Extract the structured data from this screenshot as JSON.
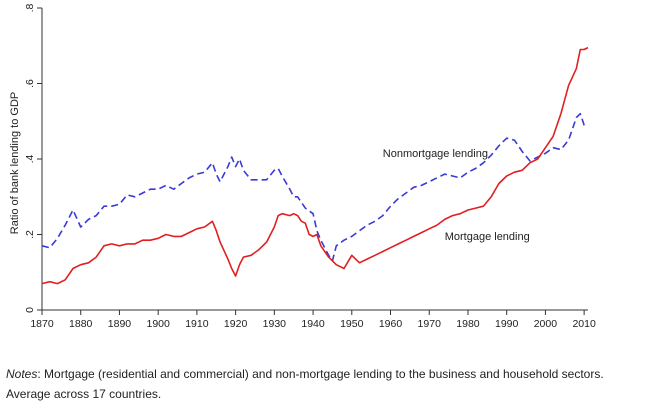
{
  "chart_data": {
    "type": "line",
    "xlabel": "",
    "ylabel": "Ratio of bank lending to GDP",
    "xlim": [
      1870,
      2011
    ],
    "ylim": [
      0,
      0.8
    ],
    "xticks": [
      1870,
      1880,
      1890,
      1900,
      1910,
      1920,
      1930,
      1940,
      1950,
      1960,
      1970,
      1980,
      1990,
      2000,
      2010
    ],
    "yticks": [
      0,
      0.2,
      0.4,
      0.6,
      0.8
    ],
    "ytick_labels": [
      "0",
      ".2",
      ".4",
      ".6",
      ".8"
    ],
    "grid": false,
    "series": [
      {
        "name": "Nonmortgage lending",
        "color": "#3a3ad6",
        "style": "dashed",
        "points": [
          [
            1870,
            0.17
          ],
          [
            1872,
            0.165
          ],
          [
            1874,
            0.19
          ],
          [
            1876,
            0.225
          ],
          [
            1878,
            0.265
          ],
          [
            1880,
            0.22
          ],
          [
            1882,
            0.24
          ],
          [
            1884,
            0.25
          ],
          [
            1886,
            0.275
          ],
          [
            1888,
            0.275
          ],
          [
            1890,
            0.28
          ],
          [
            1892,
            0.305
          ],
          [
            1894,
            0.3
          ],
          [
            1896,
            0.31
          ],
          [
            1898,
            0.32
          ],
          [
            1900,
            0.32
          ],
          [
            1902,
            0.33
          ],
          [
            1904,
            0.32
          ],
          [
            1906,
            0.335
          ],
          [
            1908,
            0.35
          ],
          [
            1910,
            0.36
          ],
          [
            1912,
            0.365
          ],
          [
            1914,
            0.39
          ],
          [
            1915,
            0.36
          ],
          [
            1916,
            0.34
          ],
          [
            1918,
            0.38
          ],
          [
            1919,
            0.405
          ],
          [
            1920,
            0.38
          ],
          [
            1921,
            0.4
          ],
          [
            1922,
            0.37
          ],
          [
            1924,
            0.345
          ],
          [
            1926,
            0.345
          ],
          [
            1928,
            0.345
          ],
          [
            1930,
            0.37
          ],
          [
            1931,
            0.375
          ],
          [
            1932,
            0.355
          ],
          [
            1934,
            0.32
          ],
          [
            1935,
            0.3
          ],
          [
            1936,
            0.3
          ],
          [
            1938,
            0.27
          ],
          [
            1940,
            0.255
          ],
          [
            1941,
            0.21
          ],
          [
            1942,
            0.185
          ],
          [
            1944,
            0.145
          ],
          [
            1945,
            0.13
          ],
          [
            1946,
            0.17
          ],
          [
            1948,
            0.185
          ],
          [
            1950,
            0.195
          ],
          [
            1952,
            0.21
          ],
          [
            1954,
            0.225
          ],
          [
            1956,
            0.235
          ],
          [
            1958,
            0.25
          ],
          [
            1960,
            0.275
          ],
          [
            1962,
            0.295
          ],
          [
            1964,
            0.31
          ],
          [
            1966,
            0.325
          ],
          [
            1968,
            0.33
          ],
          [
            1970,
            0.34
          ],
          [
            1972,
            0.35
          ],
          [
            1974,
            0.36
          ],
          [
            1976,
            0.355
          ],
          [
            1978,
            0.35
          ],
          [
            1980,
            0.365
          ],
          [
            1982,
            0.375
          ],
          [
            1984,
            0.39
          ],
          [
            1986,
            0.41
          ],
          [
            1988,
            0.435
          ],
          [
            1990,
            0.455
          ],
          [
            1992,
            0.45
          ],
          [
            1994,
            0.42
          ],
          [
            1996,
            0.395
          ],
          [
            1998,
            0.405
          ],
          [
            2000,
            0.415
          ],
          [
            2002,
            0.43
          ],
          [
            2004,
            0.425
          ],
          [
            2006,
            0.45
          ],
          [
            2008,
            0.51
          ],
          [
            2009,
            0.52
          ],
          [
            2010,
            0.49
          ],
          [
            2011,
            0.485
          ]
        ]
      },
      {
        "name": "Mortgage lending",
        "color": "#e02020",
        "style": "solid",
        "points": [
          [
            1870,
            0.07
          ],
          [
            1872,
            0.075
          ],
          [
            1874,
            0.07
          ],
          [
            1876,
            0.08
          ],
          [
            1878,
            0.11
          ],
          [
            1880,
            0.12
          ],
          [
            1882,
            0.125
          ],
          [
            1884,
            0.14
          ],
          [
            1886,
            0.17
          ],
          [
            1888,
            0.175
          ],
          [
            1890,
            0.17
          ],
          [
            1892,
            0.175
          ],
          [
            1894,
            0.175
          ],
          [
            1896,
            0.185
          ],
          [
            1898,
            0.185
          ],
          [
            1900,
            0.19
          ],
          [
            1902,
            0.2
          ],
          [
            1904,
            0.195
          ],
          [
            1906,
            0.195
          ],
          [
            1908,
            0.205
          ],
          [
            1910,
            0.215
          ],
          [
            1912,
            0.22
          ],
          [
            1914,
            0.235
          ],
          [
            1915,
            0.21
          ],
          [
            1916,
            0.18
          ],
          [
            1918,
            0.135
          ],
          [
            1919,
            0.11
          ],
          [
            1920,
            0.09
          ],
          [
            1921,
            0.12
          ],
          [
            1922,
            0.14
          ],
          [
            1924,
            0.145
          ],
          [
            1926,
            0.16
          ],
          [
            1928,
            0.18
          ],
          [
            1930,
            0.22
          ],
          [
            1931,
            0.25
          ],
          [
            1932,
            0.255
          ],
          [
            1934,
            0.25
          ],
          [
            1935,
            0.255
          ],
          [
            1936,
            0.25
          ],
          [
            1937,
            0.235
          ],
          [
            1938,
            0.23
          ],
          [
            1939,
            0.2
          ],
          [
            1940,
            0.195
          ],
          [
            1941,
            0.2
          ],
          [
            1942,
            0.17
          ],
          [
            1944,
            0.14
          ],
          [
            1946,
            0.12
          ],
          [
            1948,
            0.11
          ],
          [
            1950,
            0.145
          ],
          [
            1952,
            0.125
          ],
          [
            1954,
            0.135
          ],
          [
            1956,
            0.145
          ],
          [
            1958,
            0.155
          ],
          [
            1960,
            0.165
          ],
          [
            1962,
            0.175
          ],
          [
            1964,
            0.185
          ],
          [
            1966,
            0.195
          ],
          [
            1968,
            0.205
          ],
          [
            1970,
            0.215
          ],
          [
            1972,
            0.225
          ],
          [
            1974,
            0.24
          ],
          [
            1976,
            0.25
          ],
          [
            1978,
            0.255
          ],
          [
            1980,
            0.265
          ],
          [
            1982,
            0.27
          ],
          [
            1984,
            0.275
          ],
          [
            1986,
            0.3
          ],
          [
            1988,
            0.335
          ],
          [
            1990,
            0.355
          ],
          [
            1992,
            0.365
          ],
          [
            1994,
            0.37
          ],
          [
            1996,
            0.39
          ],
          [
            1998,
            0.4
          ],
          [
            2000,
            0.43
          ],
          [
            2002,
            0.46
          ],
          [
            2004,
            0.52
          ],
          [
            2006,
            0.595
          ],
          [
            2008,
            0.64
          ],
          [
            2009,
            0.69
          ],
          [
            2010,
            0.69
          ],
          [
            2011,
            0.695
          ]
        ]
      }
    ],
    "annotations": [
      {
        "text": "Nonmortgage lending",
        "x": 1958,
        "y": 0.405
      },
      {
        "text": "Mortgage lending",
        "x": 1974,
        "y": 0.185
      }
    ]
  },
  "notes": {
    "label": "Notes",
    "line1": ": Mortgage (residential and commercial) and non-mortgage lending to the business and household sectors.",
    "line2": "Average across 17 countries."
  }
}
